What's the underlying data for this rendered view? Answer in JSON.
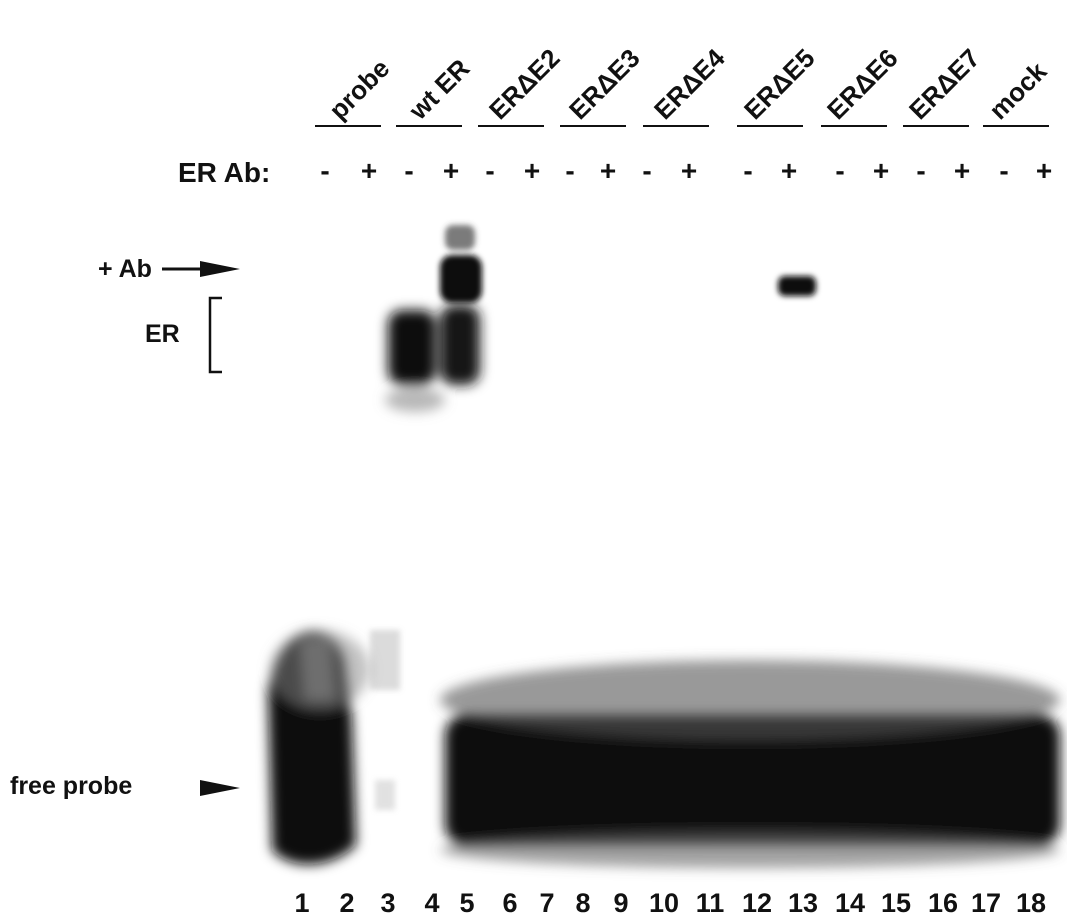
{
  "groups": [
    "probe",
    "wt ER",
    "ERΔE2",
    "ERΔE3",
    "ERΔE4",
    "ERΔE5",
    "ERΔE6",
    "ERΔE7",
    "mock"
  ],
  "antibody_row_label": "ER Ab:",
  "antibody_signs": [
    "-",
    "+",
    "-",
    "+",
    "-",
    "+",
    "-",
    "+",
    "-",
    "+",
    "-",
    "+",
    "-",
    "+",
    "-",
    "+",
    "-",
    "+"
  ],
  "lane_numbers": [
    "1",
    "2",
    "3",
    "4",
    "5",
    "6",
    "7",
    "8",
    "9",
    "10",
    "11",
    "12",
    "13",
    "14",
    "15",
    "16",
    "17",
    "18"
  ],
  "markers": {
    "supershift_label": "+ Ab",
    "er_label": "ER",
    "free_probe_label": "free probe"
  },
  "colors": {
    "ink": "#111111",
    "band": "#0d0d0d",
    "background": "#ffffff"
  }
}
